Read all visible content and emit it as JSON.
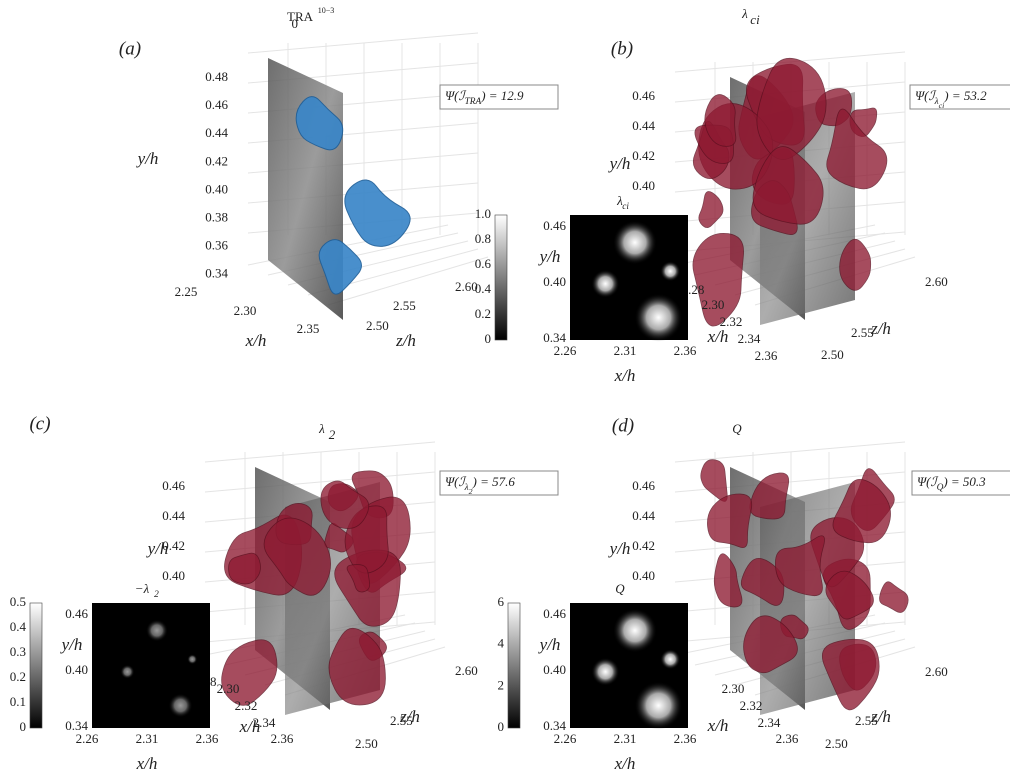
{
  "panels": [
    {
      "label": "(a)",
      "title": "TRA",
      "title_sub": "0",
      "title_sup": "10−3",
      "psi": {
        "text": "Ψ(ℐ",
        "sub": "TRA",
        "tail": ") = 12.9"
      },
      "y_label": "y/h",
      "x_label": "x/h",
      "z_label": "z/h",
      "y_ticks": [
        "0.48",
        "0.46",
        "0.44",
        "0.42",
        "0.40",
        "0.38",
        "0.36",
        "0.34"
      ],
      "x_ticks": [
        "2.25",
        "2.30",
        "2.35"
      ],
      "z_ticks": [
        "2.50",
        "2.55",
        "2.60"
      ]
    },
    {
      "label": "(b)",
      "title": "λ",
      "title_sub": "ci",
      "psi": {
        "text": "Ψ(ℐ",
        "sub": "λ",
        "sub2": "ci",
        "tail": ") = 53.2"
      },
      "y_label": "y/h",
      "x_label": "x/h",
      "z_label": "z/h",
      "y_ticks": [
        "0.46",
        "0.44",
        "0.42",
        "0.40"
      ],
      "x_ticks": [
        "2.28",
        "2.30",
        "2.32",
        "2.34",
        "2.36"
      ],
      "z_ticks": [
        "2.50",
        "2.55",
        "2.60"
      ],
      "inset": {
        "title": "λ",
        "title_sub": "ci",
        "colorbar_ticks": [
          "1.0",
          "0.8",
          "0.6",
          "0.4",
          "0.2",
          "0"
        ],
        "y_ticks": [
          "0.46",
          "0.40",
          "0.34"
        ],
        "x_ticks": [
          "2.26",
          "2.31",
          "2.36"
        ],
        "y_label": "y/h",
        "x_label": "x/h"
      }
    },
    {
      "label": "(c)",
      "title": "λ",
      "title_sub": "2",
      "psi": {
        "text": "Ψ(ℐ",
        "sub": "λ",
        "sub2": "2",
        "tail": ") = 57.6"
      },
      "y_label": "y/h",
      "x_label": "x/h",
      "z_label": "z/h",
      "y_ticks": [
        "0.46",
        "0.44",
        "0.42",
        "0.40"
      ],
      "x_ticks": [
        "28",
        "2.30",
        "2.32",
        "2.34",
        "2.36"
      ],
      "z_ticks": [
        "2.50",
        "2.55",
        "2.60"
      ],
      "inset": {
        "title": "−λ",
        "title_sub": "2",
        "colorbar_ticks": [
          "0.5",
          "0.4",
          "0.3",
          "0.2",
          "0.1",
          "0"
        ],
        "y_ticks": [
          "0.46",
          "0.40",
          "0.34"
        ],
        "x_ticks": [
          "2.26",
          "2.31",
          "2.36"
        ],
        "y_label": "y/h",
        "x_label": "x/h"
      }
    },
    {
      "label": "(d)",
      "title": "Q",
      "psi": {
        "text": "Ψ(ℐ",
        "sub": "Q",
        "tail": ") = 50.3"
      },
      "y_label": "y/h",
      "x_label": "x/h",
      "z_label": "z/h",
      "y_ticks": [
        "0.46",
        "0.44",
        "0.42",
        "0.40"
      ],
      "x_ticks": [
        "2.30",
        "2.32",
        "2.34",
        "2.36"
      ],
      "z_ticks": [
        "2.50",
        "2.55",
        "2.60"
      ],
      "inset": {
        "title": "Q",
        "colorbar_ticks": [
          "6",
          "4",
          "2",
          "0"
        ],
        "y_ticks": [
          "0.46",
          "0.40",
          "0.34"
        ],
        "x_ticks": [
          "2.26",
          "2.31",
          "2.36"
        ],
        "y_label": "y/h",
        "x_label": "x/h"
      }
    }
  ]
}
